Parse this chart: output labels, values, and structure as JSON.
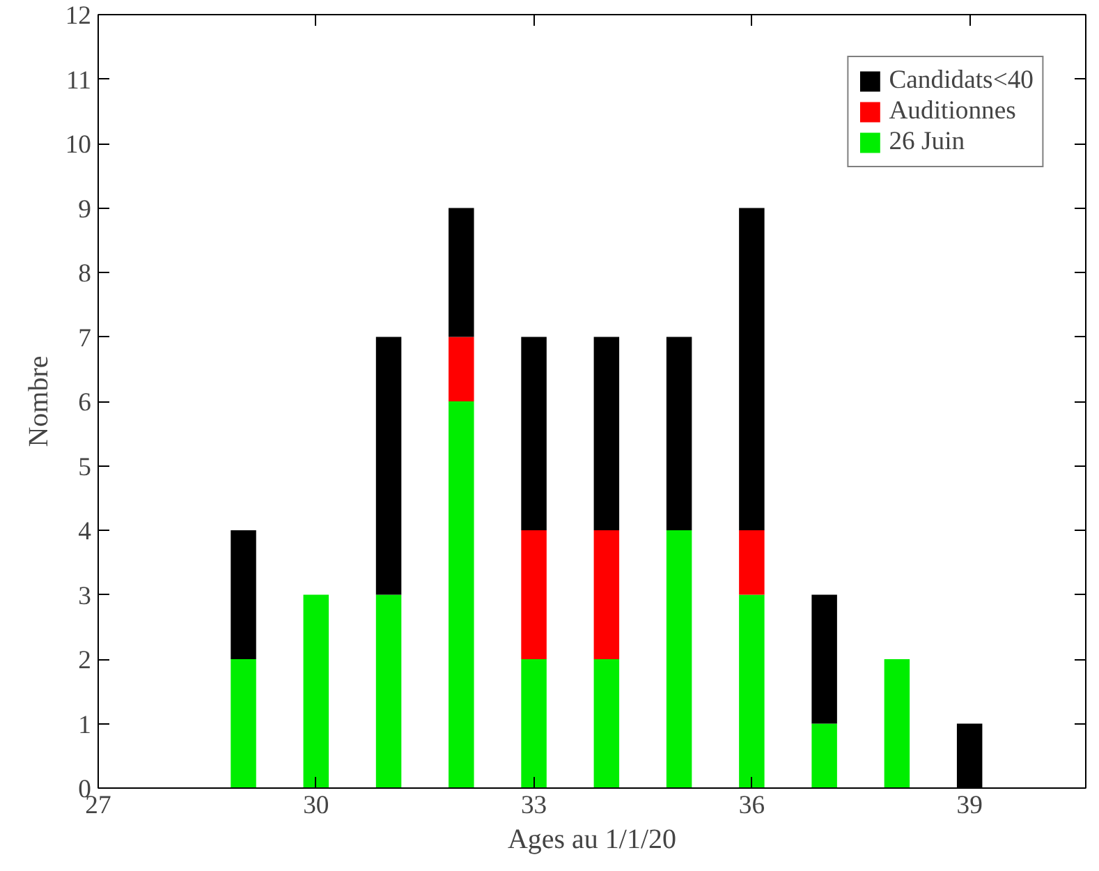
{
  "chart_data": {
    "type": "bar",
    "stacked": true,
    "xlabel": "Ages au 1/1/20",
    "ylabel": "Nombre",
    "x": [
      29,
      30,
      31,
      32,
      33,
      34,
      35,
      36,
      37,
      38,
      39
    ],
    "series": [
      {
        "name": "26 Juin",
        "color": "#00ee00",
        "values": [
          2,
          3,
          3,
          6,
          2,
          2,
          4,
          3,
          1,
          2,
          0
        ]
      },
      {
        "name": "Auditionnes",
        "color": "#ff0000",
        "values": [
          0,
          0,
          0,
          1,
          2,
          2,
          0,
          1,
          0,
          0,
          0
        ]
      },
      {
        "name": "Candidats<40",
        "color": "#000000",
        "values": [
          2,
          0,
          4,
          2,
          3,
          3,
          3,
          5,
          2,
          0,
          1
        ]
      }
    ],
    "xlim": [
      27,
      40.6
    ],
    "xticks": [
      27,
      30,
      33,
      36,
      39
    ],
    "ylim": [
      0,
      12
    ],
    "yticks": [
      0,
      1,
      2,
      3,
      4,
      5,
      6,
      7,
      8,
      9,
      10,
      11,
      12
    ],
    "grid": false,
    "legend": "top right"
  }
}
